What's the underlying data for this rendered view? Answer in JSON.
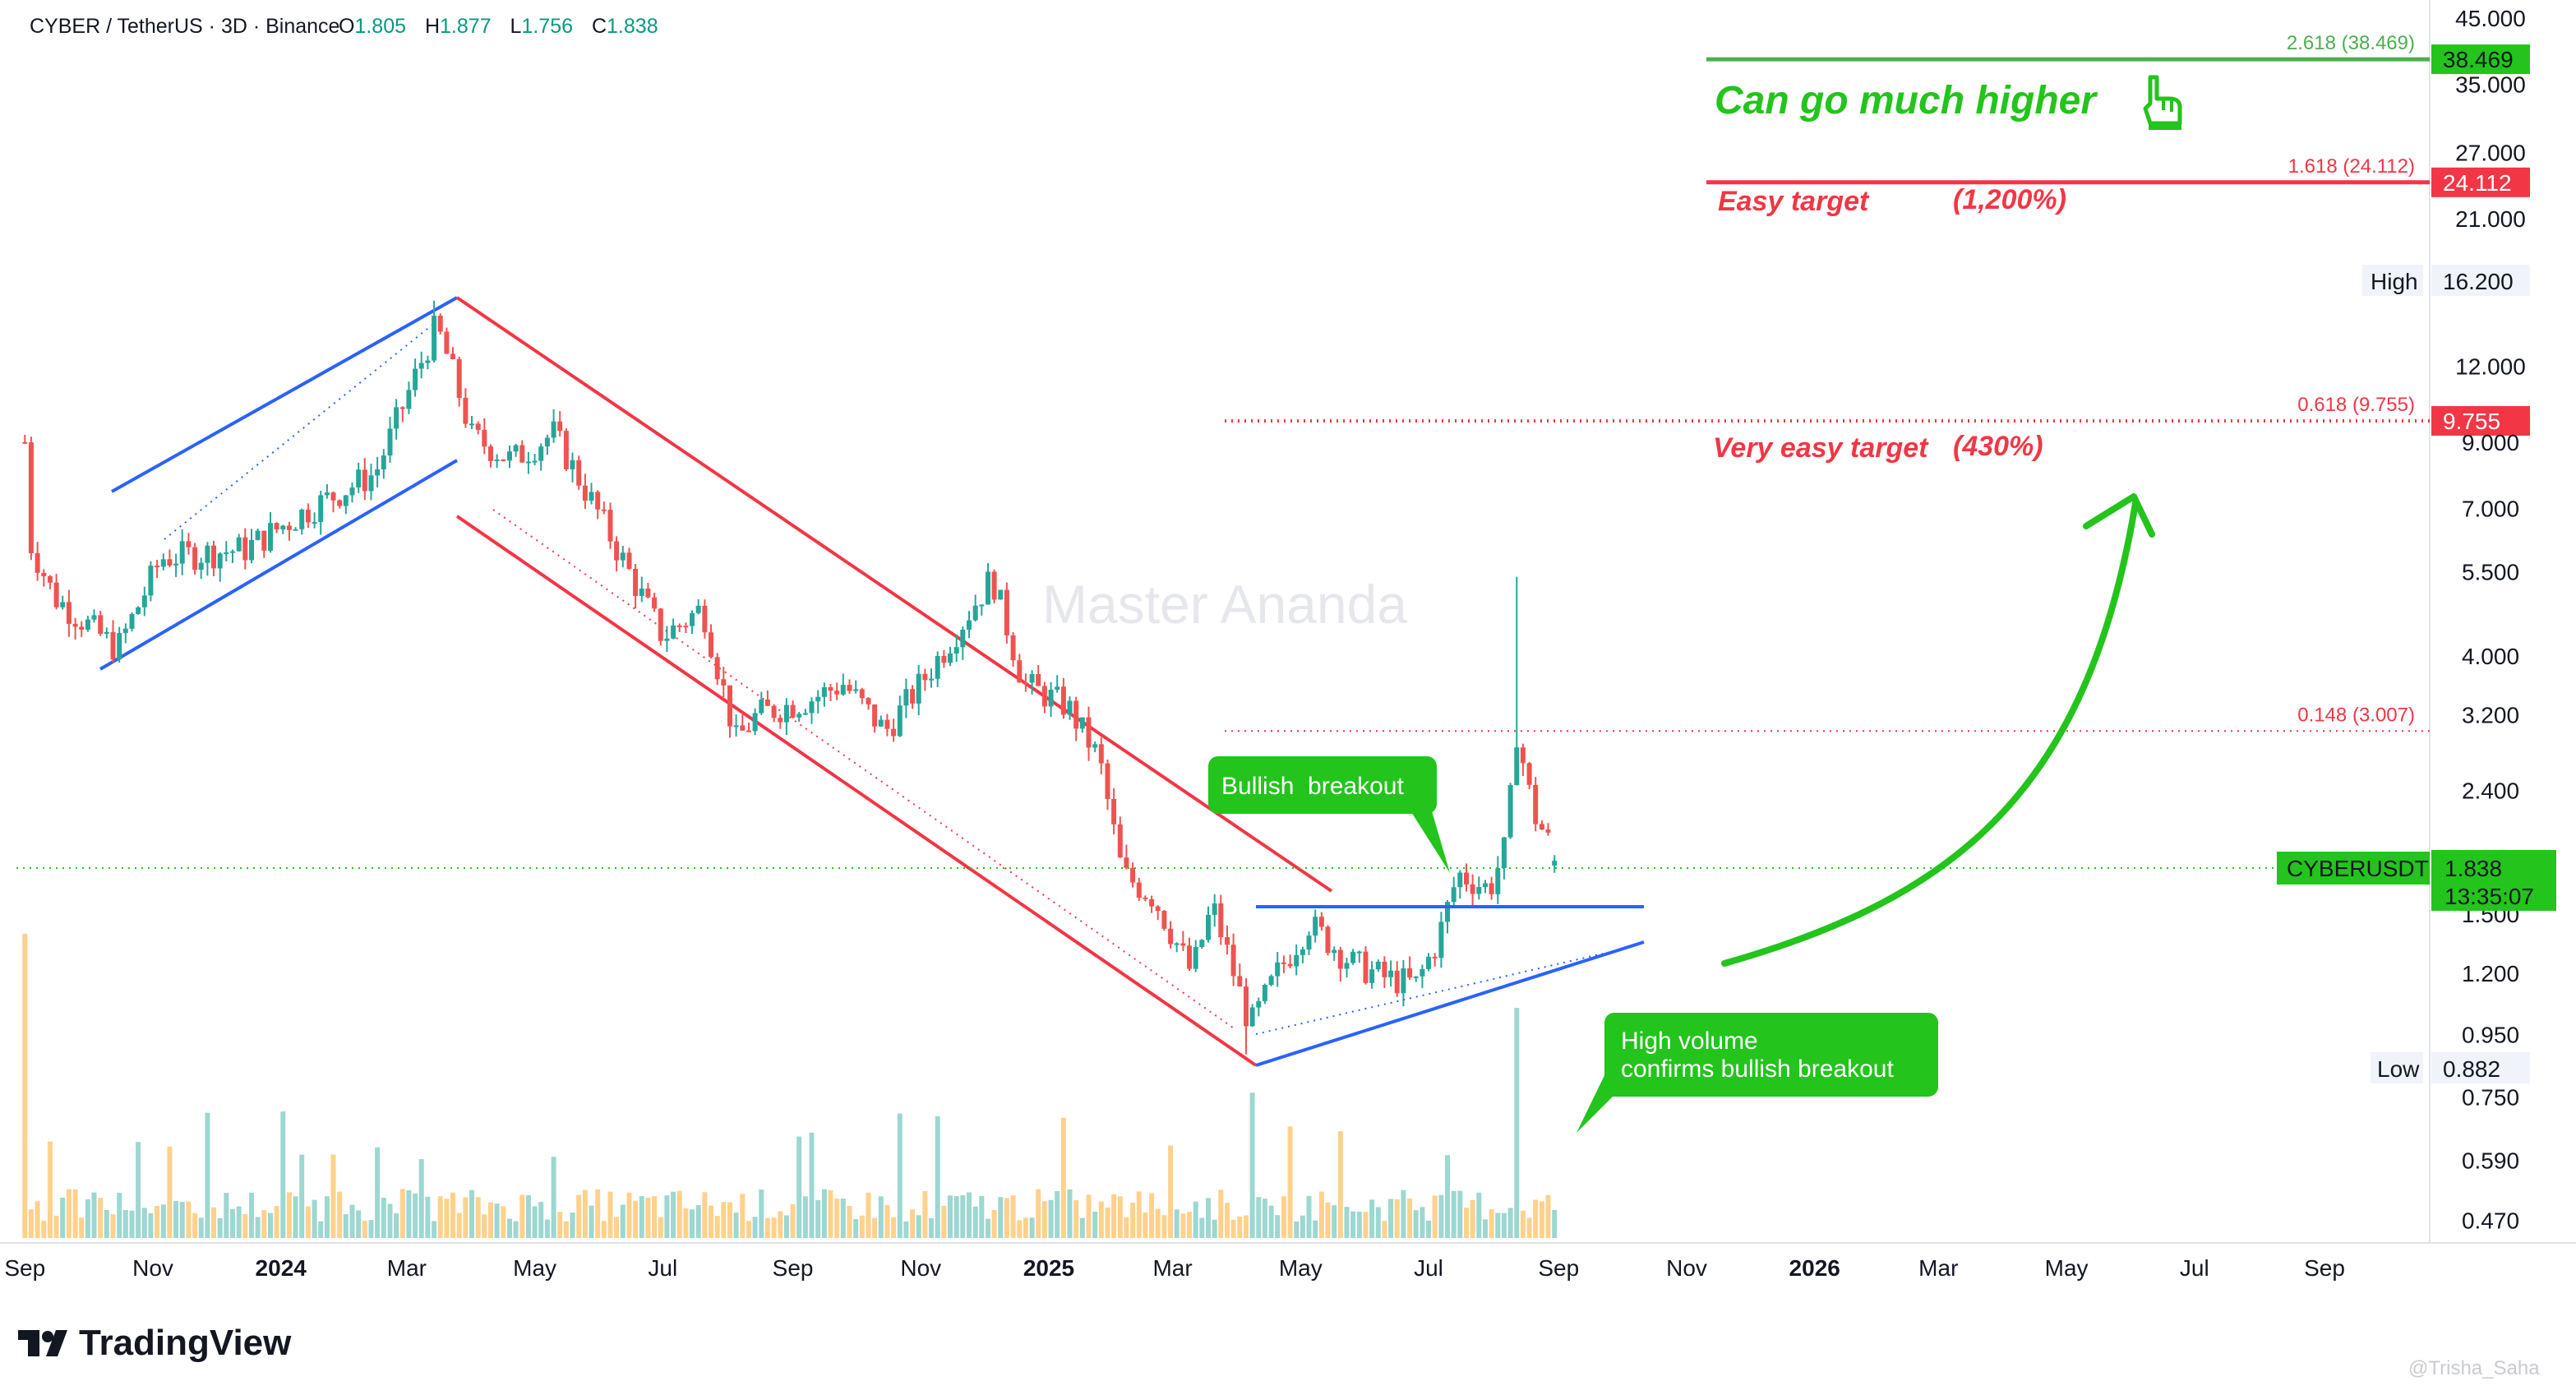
{
  "header": {
    "symbol": "CYBER / TetherUS · 3D · Binance",
    "open_label": "O",
    "open": "1.805",
    "high_label": "H",
    "high": "1.877",
    "low_label": "L",
    "low": "1.756",
    "close_label": "C",
    "close": "1.838"
  },
  "watermark": "Master Ananda",
  "branding": {
    "logo_text": "TradingView",
    "user_watermark": "@Trisha_Saha"
  },
  "colors": {
    "up": "#26a69a",
    "down": "#ef5350",
    "bull_green": "#23c41c",
    "bear_red": "#f23645",
    "channel_blue": "#2962ff",
    "channel_red": "#f23645",
    "fib_green": "#4caf50",
    "fib_red": "#f23645"
  },
  "annotations": {
    "can_go_higher": "Can go much higher",
    "easy_target": "Easy target",
    "easy_target_pct": "(1,200%)",
    "very_easy_target": "Very easy target",
    "very_easy_target_pct": "(430%)",
    "bullish_breakout": "Bullish  breakout",
    "high_volume_line1": "High volume",
    "high_volume_line2": "confirms bullish breakout",
    "pointing_hand_icon": "pointing-hand-icon"
  },
  "fib_levels": [
    {
      "label": "2.618 (38.469)",
      "price": 38.469,
      "tag": "38.469",
      "color": "green"
    },
    {
      "label": "1.618 (24.112)",
      "price": 24.112,
      "tag": "24.112",
      "color": "red"
    },
    {
      "label": "0.618 (9.755)",
      "price": 9.755,
      "tag": "9.755",
      "color": "red"
    },
    {
      "label": "0.148 (3.007)",
      "price": 3.007,
      "tag": "",
      "color": "red"
    }
  ],
  "price_tags": {
    "high_label": "High",
    "high_value": "16.200",
    "low_label": "Low",
    "low_value": "0.882",
    "symbol_label": "CYBERUSDT",
    "last_price": "1.838",
    "countdown": "13:35:07"
  },
  "chart_data": {
    "type": "candlestick",
    "title": "CYBER / TetherUS · 3D · Binance",
    "y_scale": "log",
    "y_ticks": [
      "45.000",
      "35.000",
      "27.000",
      "21.000",
      "12.000",
      "9.000",
      "7.000",
      "5.500",
      "4.000",
      "3.200",
      "2.400",
      "1.500",
      "1.200",
      "0.950",
      "0.750",
      "0.590",
      "0.470"
    ],
    "x_ticks": [
      "Sep",
      "Nov",
      "2024",
      "Mar",
      "May",
      "Jul",
      "Sep",
      "Nov",
      "2025",
      "Mar",
      "May",
      "Jul",
      "Sep",
      "Nov",
      "2026",
      "Mar",
      "May",
      "Jul",
      "Sep"
    ],
    "x_tick_dates": [
      "2023-09-01",
      "2023-11-01",
      "2024-01-01",
      "2024-03-01",
      "2024-05-01",
      "2024-07-01",
      "2024-09-01",
      "2024-11-01",
      "2025-01-01",
      "2025-03-01",
      "2025-05-01",
      "2025-07-01",
      "2025-09-01",
      "2025-11-01",
      "2026-01-01",
      "2026-03-01",
      "2026-05-01",
      "2026-07-01",
      "2026-09-01"
    ],
    "ohlc_anchors": [
      {
        "date": "2023-09-01",
        "close": 9.0
      },
      {
        "date": "2023-09-03",
        "close": 6.2
      },
      {
        "date": "2023-09-15",
        "close": 5.0
      },
      {
        "date": "2023-10-15",
        "close": 4.1
      },
      {
        "date": "2023-11-05",
        "close": 5.8
      },
      {
        "date": "2023-12-15",
        "close": 6.0
      },
      {
        "date": "2024-01-15",
        "close": 7.0
      },
      {
        "date": "2024-02-15",
        "close": 8.0
      },
      {
        "date": "2024-03-15",
        "close": 14.0
      },
      {
        "date": "2024-03-22",
        "close": 12.0
      },
      {
        "date": "2024-04-01",
        "close": 9.2
      },
      {
        "date": "2024-04-20",
        "close": 8.4
      },
      {
        "date": "2024-05-10",
        "close": 9.3
      },
      {
        "date": "2024-06-01",
        "close": 6.8
      },
      {
        "date": "2024-07-01",
        "close": 4.3
      },
      {
        "date": "2024-07-20",
        "close": 4.8
      },
      {
        "date": "2024-08-05",
        "close": 2.9
      },
      {
        "date": "2024-08-15",
        "close": 3.2
      },
      {
        "date": "2024-09-10",
        "close": 3.4
      },
      {
        "date": "2024-09-25",
        "close": 3.6
      },
      {
        "date": "2024-10-15",
        "close": 3.0
      },
      {
        "date": "2024-11-01",
        "close": 3.6
      },
      {
        "date": "2024-11-20",
        "close": 4.5
      },
      {
        "date": "2024-12-05",
        "close": 5.4
      },
      {
        "date": "2024-12-20",
        "close": 3.6
      },
      {
        "date": "2025-01-10",
        "close": 3.3
      },
      {
        "date": "2025-01-25",
        "close": 2.7
      },
      {
        "date": "2025-02-05",
        "close": 1.75
      },
      {
        "date": "2025-02-20",
        "close": 1.6
      },
      {
        "date": "2025-03-10",
        "close": 1.2
      },
      {
        "date": "2025-03-20",
        "close": 1.55
      },
      {
        "date": "2025-04-07",
        "close": 0.98
      },
      {
        "date": "2025-04-20",
        "close": 1.2
      },
      {
        "date": "2025-05-05",
        "close": 1.45
      },
      {
        "date": "2025-05-25",
        "close": 1.25
      },
      {
        "date": "2025-06-10",
        "close": 1.18
      },
      {
        "date": "2025-06-25",
        "close": 1.15
      },
      {
        "date": "2025-07-05",
        "close": 1.35
      },
      {
        "date": "2025-07-15",
        "close": 1.75
      },
      {
        "date": "2025-07-30",
        "close": 1.65
      },
      {
        "date": "2025-08-07",
        "close": 1.95
      },
      {
        "date": "2025-08-12",
        "close": 3.0
      },
      {
        "date": "2025-08-20",
        "close": 2.2
      },
      {
        "date": "2025-09-01",
        "close": 1.838
      }
    ],
    "key_extremes": {
      "high": 16.2,
      "low": 0.882,
      "last_wick_high": 5.4
    },
    "volume": {
      "spike_date": "2025-08-12"
    }
  }
}
